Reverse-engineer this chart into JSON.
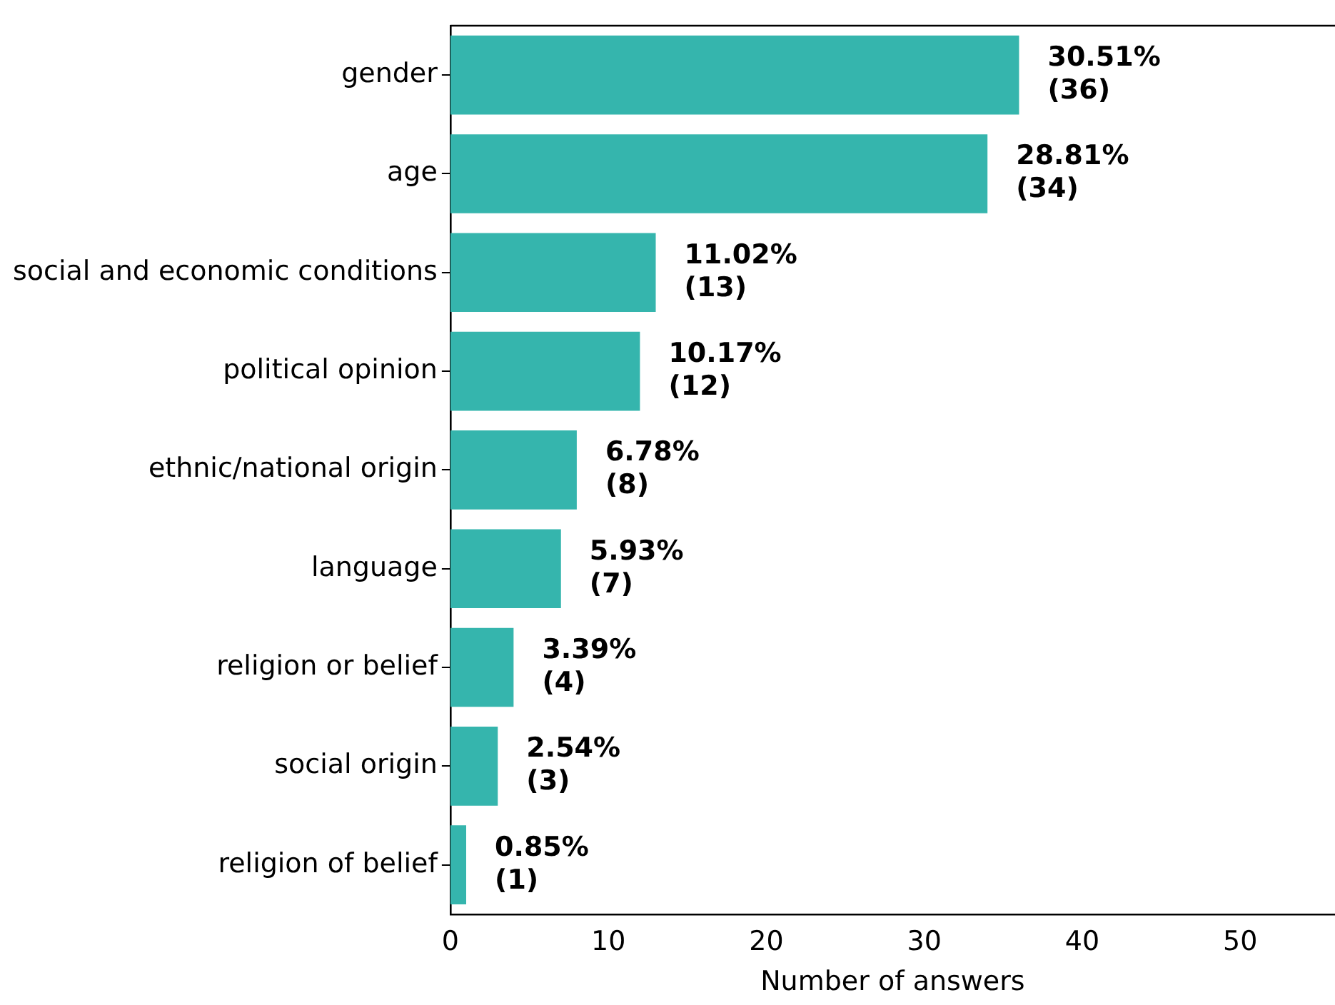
{
  "chart_data": {
    "type": "bar",
    "orientation": "horizontal",
    "xlabel": "Number of answers",
    "categories": [
      "gender",
      "age",
      "social and economic conditions",
      "political opinion",
      "ethnic/national origin",
      "language",
      "religion or belief",
      "social origin",
      "religion of belief"
    ],
    "values": [
      36,
      34,
      13,
      12,
      8,
      7,
      4,
      3,
      1
    ],
    "value_labels": [
      "30.51%\n(36)",
      "28.81%\n(34)",
      "11.02%\n(13)",
      "10.17%\n(12)",
      "6.78%\n(8)",
      "5.93%\n(7)",
      "3.39%\n(4)",
      "2.54%\n(3)",
      "0.85%\n(1)"
    ],
    "color": "#35b5ad",
    "xlim": [
      0,
      56
    ],
    "xticks": [
      0,
      10,
      20,
      30,
      40,
      50
    ],
    "grid": false,
    "legend": false
  }
}
